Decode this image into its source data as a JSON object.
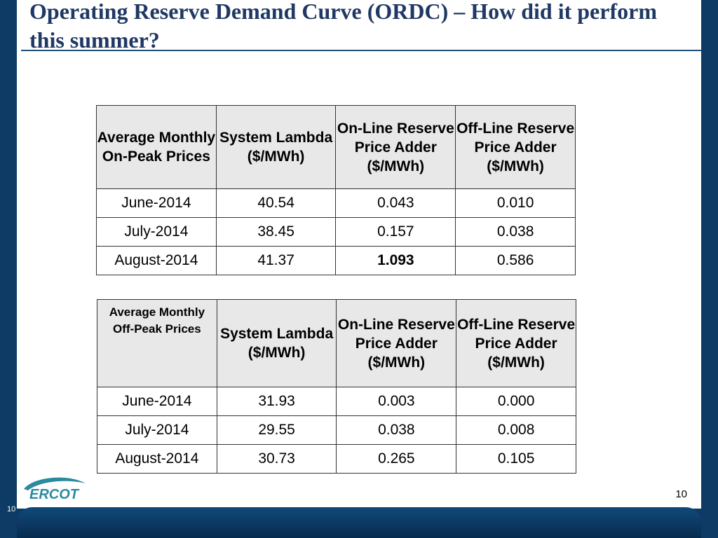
{
  "slide": {
    "title": "Operating Reserve Demand Curve (ORDC) – How did it perform this summer?",
    "page_number": "10",
    "corner_number": "10",
    "logo_text": "ERCOT"
  },
  "colors": {
    "background": "#0d3b66",
    "title": "#1f3864",
    "header_fill": "#e8e8e8",
    "logo_teal": "#2b8aa0"
  },
  "on_peak": {
    "headers": [
      "Average Monthly On-Peak Prices",
      "System Lambda ($/MWh)",
      "On-Line Reserve Price Adder ($/MWh)",
      "Off-Line Reserve Price Adder ($/MWh)"
    ],
    "rows": [
      [
        "June-2014",
        "40.54",
        "0.043",
        "0.010"
      ],
      [
        "July-2014",
        "38.45",
        "0.157",
        "0.038"
      ],
      [
        "August-2014",
        "41.37",
        "1.093",
        "0.586"
      ]
    ]
  },
  "off_peak": {
    "headers": [
      "Average Monthly Off-Peak Prices",
      "System Lambda ($/MWh)",
      "On-Line Reserve Price Adder ($/MWh)",
      "Off-Line Reserve Price Adder ($/MWh)"
    ],
    "rows": [
      [
        "June-2014",
        "31.93",
        "0.003",
        "0.000"
      ],
      [
        "July-2014",
        "29.55",
        "0.038",
        "0.008"
      ],
      [
        "August-2014",
        "30.73",
        "0.265",
        "0.105"
      ]
    ]
  }
}
